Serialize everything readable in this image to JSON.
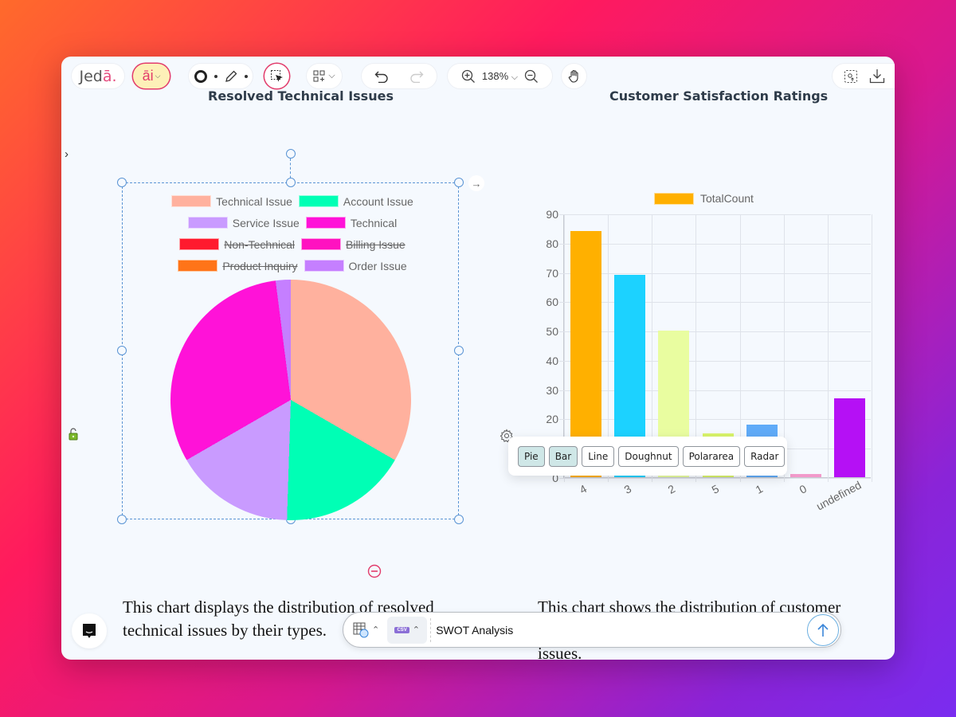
{
  "toolbar": {
    "logo": "Jed",
    "logo_accent": "ā.",
    "ai_label": "āi",
    "zoom_level": "138%"
  },
  "left_chart": {
    "title": "Resolved Technical Issues",
    "description": "This chart displays the distribution of resolved technical issues by their types."
  },
  "right_chart": {
    "title": "Customer Satisfaction Ratings",
    "description_line1": "This chart shows the distribution of customer",
    "description_line3": "issues."
  },
  "chart_type_menu": {
    "options": [
      "Pie",
      "Bar",
      "Line",
      "Doughnut",
      "Polararea",
      "Radar"
    ],
    "active": [
      "Pie",
      "Bar"
    ]
  },
  "prompt_bar": {
    "input_value": "SWOT Analysis",
    "file_tag": "CSV"
  },
  "chart_data": [
    {
      "type": "pie",
      "title": "Resolved Technical Issues",
      "legend_position": "top",
      "categories": [
        "Technical Issue",
        "Account Issue",
        "Service Issue",
        "Technical",
        "Non-Technical",
        "Billing Issue",
        "Product Inquiry",
        "Order Issue"
      ],
      "colors": [
        "#FFB19E",
        "#00FFB5",
        "#C99BFF",
        "#FF12D8",
        "#FF1A2E",
        "#FF12C0",
        "#FF7418",
        "#C57FFF"
      ],
      "hidden": [
        "Non-Technical",
        "Billing Issue",
        "Product Inquiry"
      ],
      "values": [
        33,
        17,
        16,
        31,
        0,
        0,
        0,
        2
      ],
      "unit": "approx. % of visible total"
    },
    {
      "type": "bar",
      "title": "Customer Satisfaction Ratings",
      "legend": [
        "TotalCount"
      ],
      "legend_position": "top",
      "categories": [
        "4",
        "3",
        "2",
        "5",
        "1",
        "0",
        "undefined"
      ],
      "series": [
        {
          "name": "TotalCount",
          "values": [
            84,
            69,
            50,
            15,
            18,
            1,
            27
          ]
        }
      ],
      "colors": [
        "#FFB000",
        "#1CD2FF",
        "#E9FDA0",
        "#D9F46A",
        "#60ABF8",
        "#F29ACB",
        "#B510F5"
      ],
      "yticks": [
        0,
        10,
        20,
        30,
        40,
        50,
        60,
        70,
        80,
        90
      ],
      "ylim": [
        0,
        90
      ],
      "grid": true,
      "xlabel": "",
      "ylabel": ""
    }
  ]
}
